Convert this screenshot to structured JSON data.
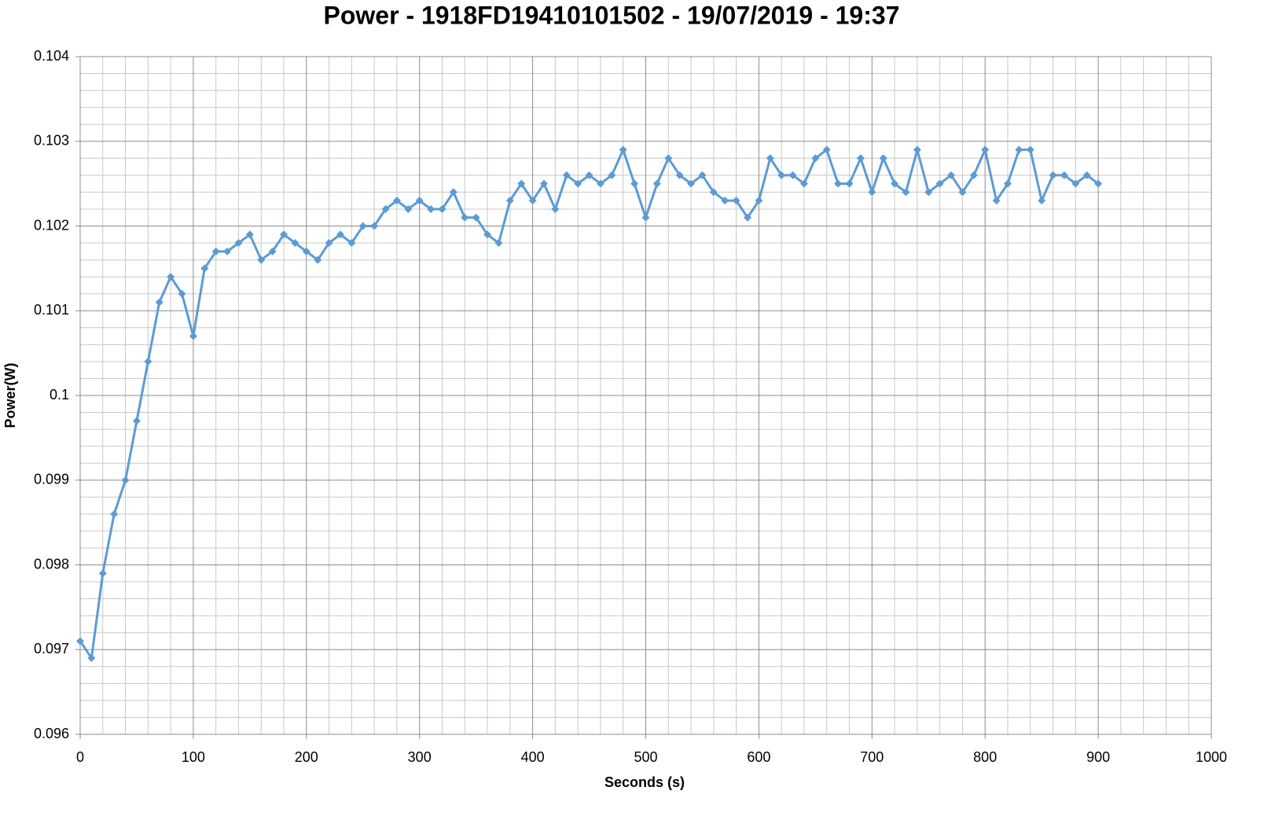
{
  "chart_data": {
    "type": "line",
    "title": "Power - 1918FD19410101502 - 19/07/2019 - 19:37",
    "x_label": "Seconds (s)",
    "y_label": "Power(W)",
    "xlim": [
      0,
      1000
    ],
    "xticks": [
      0,
      100,
      200,
      300,
      400,
      500,
      600,
      700,
      800,
      900,
      1000
    ],
    "ylim": [
      0.096,
      0.104
    ],
    "yticks": [
      0.096,
      0.097,
      0.098,
      0.099,
      0.1,
      0.101,
      0.102,
      0.103,
      0.104
    ],
    "grid": true,
    "x": [
      0,
      10,
      20,
      30,
      40,
      50,
      60,
      70,
      80,
      90,
      100,
      110,
      120,
      130,
      140,
      150,
      160,
      170,
      180,
      190,
      200,
      210,
      220,
      230,
      240,
      250,
      260,
      270,
      280,
      290,
      300,
      310,
      320,
      330,
      340,
      350,
      360,
      370,
      380,
      390,
      400,
      410,
      420,
      430,
      440,
      450,
      460,
      470,
      480,
      490,
      500,
      510,
      520,
      530,
      540,
      550,
      560,
      570,
      580,
      590,
      600,
      610,
      620,
      630,
      640,
      650,
      660,
      670,
      680,
      690,
      700,
      710,
      720,
      730,
      740,
      750,
      760,
      770,
      780,
      790,
      800,
      810,
      820,
      830,
      840,
      850,
      860,
      870,
      880,
      890,
      900
    ],
    "series": [
      {
        "name": "Power",
        "color": "#5b9bd5",
        "values": [
          0.0971,
          0.0969,
          0.0979,
          0.0986,
          0.099,
          0.0997,
          0.1004,
          0.1011,
          0.1014,
          0.1012,
          0.1007,
          0.1015,
          0.1017,
          0.1017,
          0.1018,
          0.1019,
          0.1016,
          0.1017,
          0.1019,
          0.1018,
          0.1017,
          0.1016,
          0.1018,
          0.1019,
          0.1018,
          0.102,
          0.102,
          0.1022,
          0.1023,
          0.1022,
          0.1023,
          0.1022,
          0.1022,
          0.1024,
          0.1021,
          0.1021,
          0.1019,
          0.1018,
          0.1023,
          0.1025,
          0.1023,
          0.1025,
          0.1022,
          0.1026,
          0.1025,
          0.1026,
          0.1025,
          0.1026,
          0.1029,
          0.1025,
          0.1021,
          0.1025,
          0.1028,
          0.1026,
          0.1025,
          0.1026,
          0.1024,
          0.1023,
          0.1023,
          0.1021,
          0.1023,
          0.1028,
          0.1026,
          0.1026,
          0.1025,
          0.1028,
          0.1029,
          0.1025,
          0.1025,
          0.1028,
          0.1024,
          0.1028,
          0.1025,
          0.1024,
          0.1029,
          0.1024,
          0.1025,
          0.1026,
          0.1024,
          0.1026,
          0.1029,
          0.1023,
          0.1025,
          0.1029,
          0.1029,
          0.1023,
          0.1026,
          0.1026,
          0.1025,
          0.1026,
          0.1025
        ]
      }
    ]
  }
}
